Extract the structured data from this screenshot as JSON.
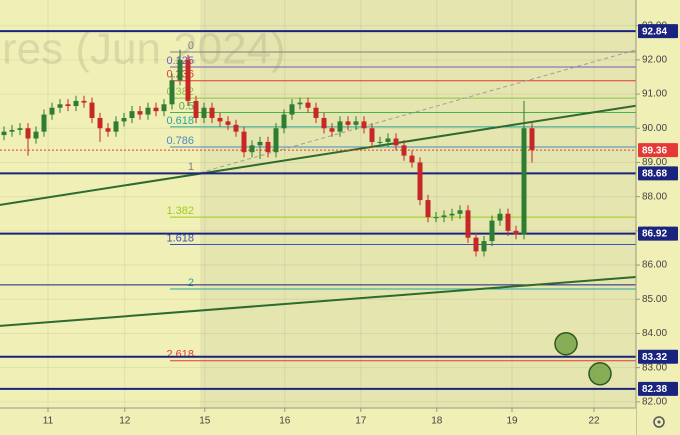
{
  "chart_data": {
    "type": "candlestick",
    "watermark": "res (Jun 2024)",
    "xlim": [
      0,
      79.5
    ],
    "ylim": [
      81.82,
      93.75
    ],
    "xticks": [
      {
        "value": 6,
        "label": "11"
      },
      {
        "value": 15.6,
        "label": "12"
      },
      {
        "value": 25.6,
        "label": "15"
      },
      {
        "value": 35.6,
        "label": "16"
      },
      {
        "value": 45.1,
        "label": "17"
      },
      {
        "value": 54.6,
        "label": "18"
      },
      {
        "value": 64,
        "label": "19"
      },
      {
        "value": 74.25,
        "label": "22"
      }
    ],
    "yticks": [
      {
        "value": 82,
        "label": "82.00"
      },
      {
        "value": 83,
        "label": "83.00"
      },
      {
        "value": 84,
        "label": "84.00"
      },
      {
        "value": 85,
        "label": "85.00"
      },
      {
        "value": 86,
        "label": "86.00"
      },
      {
        "value": 87,
        "label": "87.00"
      },
      {
        "value": 88,
        "label": "88.00"
      },
      {
        "value": 89,
        "label": "89.00"
      },
      {
        "value": 90,
        "label": "90.00"
      },
      {
        "value": 91,
        "label": "91.00"
      },
      {
        "value": 92,
        "label": "92.00"
      },
      {
        "value": 93,
        "label": "93.00"
      }
    ],
    "up_color": "#2e7d32",
    "down_color": "#c62828",
    "open": [
      89.8,
      89.9,
      89.95,
      90.0,
      89.7,
      89.9,
      90.4,
      90.6,
      90.7,
      90.65,
      90.8,
      90.75,
      90.3,
      90.0,
      89.9,
      90.2,
      90.3,
      90.5,
      90.4,
      90.6,
      90.5,
      90.7,
      91.4,
      92.0,
      90.8,
      90.3,
      90.6,
      90.3,
      90.2,
      90.1,
      89.9,
      89.3,
      89.5,
      89.6,
      89.3,
      90.0,
      90.4,
      90.7,
      90.75,
      90.6,
      90.3,
      90.0,
      89.9,
      90.2,
      90.1,
      90.2,
      90.0,
      89.6,
      89.6,
      89.7,
      89.5,
      89.2,
      89.0,
      87.9,
      87.4,
      87.4,
      87.45,
      87.5,
      87.6,
      86.8,
      86.4,
      86.7,
      87.3,
      87.5,
      87.0,
      86.9,
      90.0
    ],
    "high": [
      90.05,
      90.1,
      90.15,
      90.15,
      90.05,
      90.55,
      90.75,
      90.85,
      90.85,
      90.95,
      90.95,
      90.9,
      90.45,
      90.15,
      90.35,
      90.45,
      90.65,
      90.65,
      90.75,
      90.75,
      90.85,
      91.6,
      92.3,
      92.15,
      90.95,
      90.75,
      90.75,
      90.45,
      90.35,
      90.25,
      90.05,
      89.65,
      89.75,
      89.75,
      90.15,
      90.55,
      90.85,
      90.9,
      90.9,
      90.75,
      90.45,
      90.15,
      90.35,
      90.35,
      90.35,
      90.35,
      90.15,
      89.75,
      89.85,
      89.85,
      89.65,
      89.35,
      89.15,
      88.05,
      87.55,
      87.6,
      87.65,
      87.75,
      87.75,
      86.95,
      86.85,
      87.45,
      87.65,
      87.65,
      87.15,
      90.8,
      90.15
    ],
    "low": [
      89.65,
      89.75,
      89.8,
      89.2,
      89.55,
      89.75,
      90.25,
      90.45,
      90.5,
      90.5,
      90.6,
      90.15,
      89.6,
      89.75,
      89.75,
      90.05,
      90.15,
      90.25,
      90.25,
      90.35,
      90.35,
      90.55,
      91.25,
      90.65,
      90.15,
      90.15,
      90.15,
      90.05,
      89.95,
      89.75,
      89.15,
      89.15,
      89.1,
      89.15,
      89.15,
      89.85,
      90.25,
      90.55,
      90.45,
      90.15,
      89.85,
      89.75,
      89.75,
      89.95,
      89.95,
      89.85,
      89.45,
      89.45,
      89.45,
      89.35,
      89.05,
      88.85,
      87.75,
      87.25,
      87.25,
      87.25,
      87.3,
      87.35,
      86.65,
      86.25,
      86.25,
      86.55,
      87.15,
      86.85,
      86.75,
      86.75,
      89.0
    ],
    "close": [
      89.9,
      89.95,
      90.0,
      89.7,
      89.9,
      90.4,
      90.6,
      90.7,
      90.65,
      90.8,
      90.75,
      90.3,
      90.0,
      89.9,
      90.2,
      90.3,
      90.5,
      90.4,
      90.6,
      90.5,
      90.7,
      91.4,
      92.0,
      90.8,
      90.3,
      90.6,
      90.3,
      90.2,
      90.1,
      89.9,
      89.3,
      89.5,
      89.6,
      89.3,
      90.0,
      90.4,
      90.7,
      90.75,
      90.6,
      90.3,
      90.0,
      89.9,
      90.2,
      90.1,
      90.2,
      90.0,
      89.6,
      89.6,
      89.7,
      89.5,
      89.2,
      89.0,
      87.9,
      87.4,
      87.4,
      87.45,
      87.5,
      87.6,
      86.8,
      86.4,
      86.7,
      87.3,
      87.5,
      87.0,
      86.9,
      90.0,
      89.36
    ],
    "hlines": [
      {
        "value": 92.84,
        "label": "92.84",
        "color": "#1a237e"
      },
      {
        "value": 89.36,
        "label": "89.36",
        "color": "#e53935"
      },
      {
        "value": 88.68,
        "label": "88.68",
        "color": "#1a237e"
      },
      {
        "value": 86.92,
        "label": "86.92",
        "color": "#1a237e"
      },
      {
        "value": 83.32,
        "label": "83.32",
        "color": "#1a237e"
      },
      {
        "value": 82.38,
        "label": "82.38",
        "color": "#1a237e"
      }
    ],
    "fib": {
      "start": 25,
      "levels": [
        {
          "label": "0",
          "value": 92.23,
          "color": "#808080"
        },
        {
          "label": "0.125",
          "value": 91.79,
          "color": "#7e57c2"
        },
        {
          "label": "0.236",
          "value": 91.39,
          "color": "#e53935"
        },
        {
          "label": "0.382",
          "value": 90.88,
          "color": "#8bc34a"
        },
        {
          "label": "0.5",
          "value": 90.46,
          "color": "#4caf50"
        },
        {
          "label": "0.618",
          "value": 90.04,
          "color": "#26a69a"
        },
        {
          "label": "0.786",
          "value": 89.45,
          "color": "#4a8bc2"
        },
        {
          "label": "1",
          "value": 88.69,
          "color": "#808080"
        },
        {
          "label": "1.382",
          "value": 87.4,
          "color": "#9ccc1c"
        },
        {
          "label": "1.618",
          "value": 86.6,
          "color": "#3f51b5"
        },
        {
          "label": "2",
          "value": 85.3,
          "color": "#26a69a"
        },
        {
          "label": "2.618",
          "value": 83.2,
          "color": "#e53935"
        }
      ]
    },
    "thin_lines": [
      {
        "value": 85.42,
        "color": "#1a237e"
      }
    ],
    "trendlines": [
      {
        "x": [
          0,
          79.5
        ],
        "y": [
          87.76,
          90.66
        ],
        "color": "#2e6b2e",
        "dashed": false
      },
      {
        "x": [
          0,
          79.5
        ],
        "y": [
          84.22,
          85.65
        ],
        "color": "#2e6b2e",
        "dashed": false
      },
      {
        "x": [
          25,
          79.5
        ],
        "y": [
          88.7,
          92.29
        ],
        "color": "#9e9e9e",
        "dashed": true
      }
    ],
    "circles": {
      "x": [
        70.75,
        75
      ],
      "y": [
        83.7,
        82.82
      ],
      "color": "#6a9a3a"
    }
  }
}
